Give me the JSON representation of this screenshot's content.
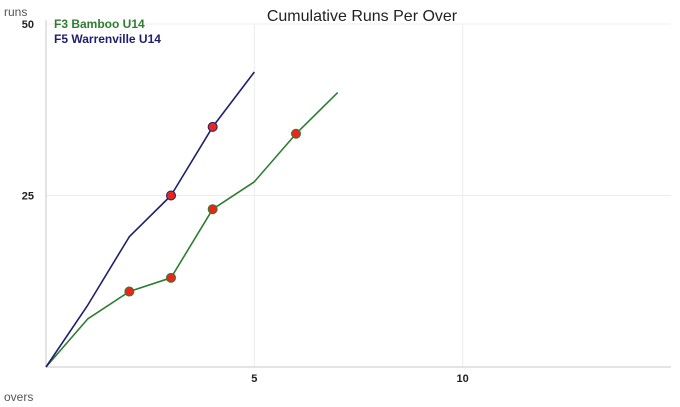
{
  "chart_data": {
    "type": "line",
    "title": "Cumulative Runs Per Over",
    "xlabel": "overs",
    "ylabel": "runs",
    "xlim": [
      0,
      15
    ],
    "ylim": [
      0,
      50
    ],
    "x_ticks": [
      5,
      10
    ],
    "y_ticks": [
      25,
      50
    ],
    "grid": true,
    "legend": "top-left",
    "series": [
      {
        "name": "F3 Bamboo U14",
        "color": "#2e7d32",
        "x": [
          0,
          1,
          2,
          3,
          4,
          5,
          6,
          7
        ],
        "values": [
          0,
          7,
          11,
          13,
          23,
          27,
          34,
          40
        ],
        "wicket_points": [
          {
            "x": 2,
            "y": 11
          },
          {
            "x": 3,
            "y": 13
          },
          {
            "x": 4,
            "y": 23
          },
          {
            "x": 6,
            "y": 34
          }
        ]
      },
      {
        "name": "F5 Warrenville U14",
        "color": "#1f1f6e",
        "x": [
          0,
          1,
          2,
          3,
          4,
          5
        ],
        "values": [
          0,
          9,
          19,
          25,
          35,
          43
        ],
        "wicket_points": [
          {
            "x": 3,
            "y": 25
          },
          {
            "x": 4,
            "y": 35
          }
        ]
      }
    ],
    "wicket_marker_color": "#e8261c"
  }
}
